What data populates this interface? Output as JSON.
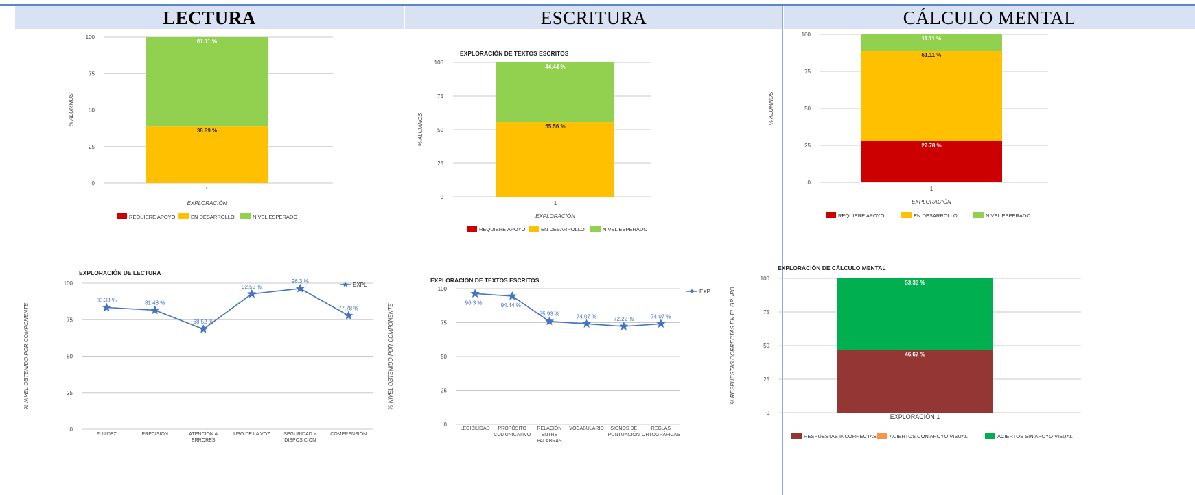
{
  "headers": {
    "lectura": "LECTURA",
    "escritura": "ESCRITURA",
    "calculo": "CÁLCULO MENTAL"
  },
  "chart_data": [
    {
      "id": "lectura-niveles",
      "type": "bar",
      "stacked": true,
      "title": "",
      "xlabel": "EXPLORACIÓN",
      "ylabel": "% ALUMNOS",
      "ylim": [
        0,
        100
      ],
      "yticks": [
        0,
        25,
        50,
        75,
        100
      ],
      "categories": [
        "1"
      ],
      "series": [
        {
          "name": "REQUIERE APOYO",
          "color": "#cc0000",
          "values": [
            0
          ],
          "labels": [
            ""
          ]
        },
        {
          "name": "EN DESARROLLO",
          "color": "#ffc000",
          "values": [
            38.89
          ],
          "labels": [
            "38.89 %"
          ]
        },
        {
          "name": "NIVEL ESPERADO",
          "color": "#92d050",
          "values": [
            61.11
          ],
          "labels": [
            "61.11 %"
          ]
        }
      ],
      "legend": "bottom",
      "grid": true
    },
    {
      "id": "escritura-niveles",
      "type": "bar",
      "stacked": true,
      "title": "EXPLORACIÓN DE TEXTOS ESCRITOS",
      "xlabel": "EXPLORACIÓN",
      "ylabel": "% ALUMNOS",
      "ylim": [
        0,
        100
      ],
      "yticks": [
        0,
        25,
        50,
        75,
        100
      ],
      "categories": [
        "1"
      ],
      "series": [
        {
          "name": "REQUIERE APOYO",
          "color": "#cc0000",
          "values": [
            0
          ],
          "labels": [
            ""
          ]
        },
        {
          "name": "EN DESARROLLO",
          "color": "#ffc000",
          "values": [
            55.56
          ],
          "labels": [
            "55.56 %"
          ]
        },
        {
          "name": "NIVEL ESPERADO",
          "color": "#92d050",
          "values": [
            44.44
          ],
          "labels": [
            "44.44 %"
          ]
        }
      ],
      "legend": "bottom",
      "grid": true
    },
    {
      "id": "calculo-niveles",
      "type": "bar",
      "stacked": true,
      "title": "",
      "xlabel": "EXPLORACIÓN",
      "ylabel": "% ALUMNOS",
      "ylim": [
        0,
        100
      ],
      "yticks": [
        0,
        25,
        50,
        75,
        100
      ],
      "categories": [
        "1"
      ],
      "series": [
        {
          "name": "REQUIERE APOYO",
          "color": "#cc0000",
          "values": [
            27.78
          ],
          "labels": [
            "27.78 %"
          ]
        },
        {
          "name": "EN DESARROLLO",
          "color": "#ffc000",
          "values": [
            61.11
          ],
          "labels": [
            "61.11 %"
          ]
        },
        {
          "name": "NIVEL ESPERADO",
          "color": "#92d050",
          "values": [
            11.11
          ],
          "labels": [
            "11.11 %"
          ]
        }
      ],
      "legend": "bottom",
      "grid": true
    },
    {
      "id": "lectura-componentes",
      "type": "line",
      "title": "EXPLORACIÓN DE LECTURA",
      "xlabel": "",
      "ylabel": "% NIVEL OBTENIDO POR COMPONENTE",
      "ylim": [
        0,
        100
      ],
      "yticks": [
        0,
        25,
        50,
        75,
        100
      ],
      "categories": [
        [
          "FLUIDEZ"
        ],
        [
          "PRECISIÓN"
        ],
        [
          "ATENCIÓN A",
          "ERRORES"
        ],
        [
          "USO DE LA VOZ"
        ],
        [
          "SEGURIDAD Y",
          "DISPOSICIÓN"
        ],
        [
          "COMPRENSIÓN"
        ]
      ],
      "series": [
        {
          "name": "EXPL",
          "color": "#4472c4",
          "values": [
            83.33,
            81.48,
            68.52,
            92.59,
            96.3,
            77.78
          ],
          "labels": [
            "83.33 %",
            "81.48 %",
            "68.52 %",
            "92.59 %",
            "96.3 %",
            "77.78 %"
          ]
        }
      ],
      "legend": "right",
      "grid": true
    },
    {
      "id": "escritura-componentes",
      "type": "line",
      "title": "EXPLORACIÓN DE TEXTOS ESCRITOS",
      "xlabel": "",
      "ylabel": "% NIVEL OBTENIDO POR COMPONENTE",
      "ylim": [
        0,
        100
      ],
      "yticks": [
        0,
        25,
        50,
        75,
        100
      ],
      "categories": [
        [
          "LEGIBILIDAD"
        ],
        [
          "PROPÓSITO",
          "COMUNICATIVO"
        ],
        [
          "RELACIÓN",
          "ENTRE",
          "PALABRAS"
        ],
        [
          "VOCABULARIO"
        ],
        [
          "SIGNOS DE",
          "PUNTUACIÓN"
        ],
        [
          "REGLAS",
          "ORTOGRÁFICAS"
        ]
      ],
      "series": [
        {
          "name": "EXP",
          "color": "#4472c4",
          "values": [
            96.3,
            94.44,
            75.93,
            74.07,
            72.22,
            74.07
          ],
          "labels": [
            "96.3 %",
            "94.44 %",
            "75.93 %",
            "74.07 %",
            "72.22 %",
            "74.07 %"
          ]
        }
      ],
      "legend": "right",
      "grid": true
    },
    {
      "id": "calculo-respuestas",
      "type": "bar",
      "stacked": true,
      "title": "EXPLORACIÓN DE CÁLCULO MENTAL",
      "xlabel": "",
      "ylabel": "% RESPUESTAS CORRECTAS EN EL GRUPO",
      "ylim": [
        0,
        100
      ],
      "yticks": [
        0,
        25,
        50,
        75,
        100
      ],
      "categories": [
        "EXPLORACIÓN 1"
      ],
      "series": [
        {
          "name": "RESPUESTAS INCORRECTAS",
          "color": "#943634",
          "values": [
            46.67
          ],
          "labels": [
            "46.67 %"
          ]
        },
        {
          "name": "ACIERTOS CON APOYO VISUAL",
          "color": "#f79646",
          "values": [
            0
          ],
          "labels": [
            ""
          ]
        },
        {
          "name": "ACIERTOS SIN APOYO VISUAL",
          "color": "#00b050",
          "values": [
            53.33
          ],
          "labels": [
            "53.33 %"
          ]
        }
      ],
      "legend": "bottom",
      "grid": true
    }
  ]
}
